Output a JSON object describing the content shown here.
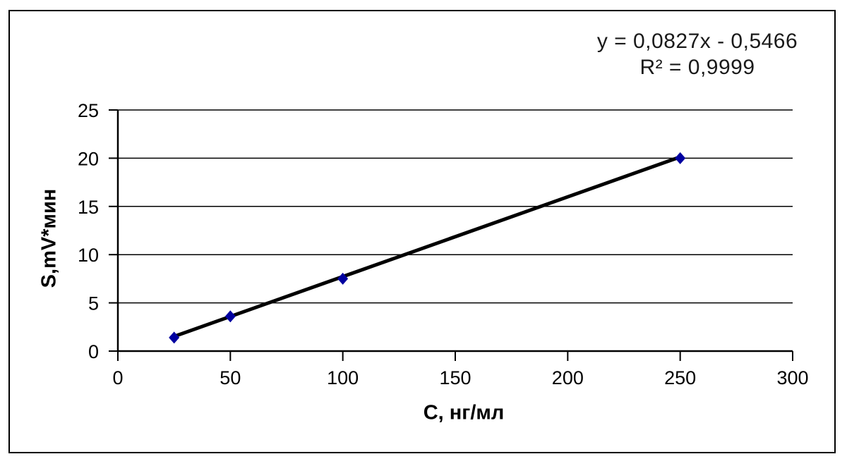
{
  "page": {
    "background_color": "#ffffff",
    "frame_border_color": "#000000"
  },
  "chart_data": {
    "type": "scatter",
    "title": "",
    "xlabel": "C, нг/мл",
    "ylabel": "S,mV*мин",
    "xlim": [
      0,
      300
    ],
    "ylim": [
      0,
      25
    ],
    "xticks": [
      0,
      50,
      100,
      150,
      200,
      250,
      300
    ],
    "yticks": [
      0,
      5,
      10,
      15,
      20,
      25
    ],
    "grid": "horizontal-major",
    "legend": "none",
    "points": [
      {
        "x": 25,
        "y": 1.4
      },
      {
        "x": 50,
        "y": 3.6
      },
      {
        "x": 100,
        "y": 7.5
      },
      {
        "x": 250,
        "y": 20.0
      }
    ],
    "trendline": {
      "type": "linear",
      "slope": 0.0827,
      "intercept": -0.5466,
      "x_start": 25,
      "x_end": 250,
      "color": "#000000",
      "width": 5
    },
    "marker": {
      "shape": "diamond",
      "color": "#0000a0"
    },
    "axis_color": "#000000",
    "gridline_color": "#000000",
    "annotation": {
      "equation": "y = 0,0827x - 0,5466",
      "r_squared": "R² = 0,9999"
    }
  }
}
